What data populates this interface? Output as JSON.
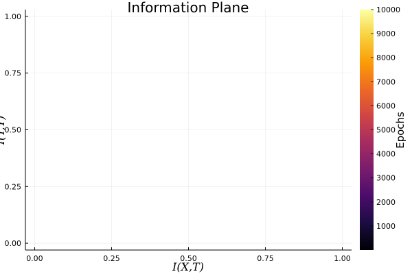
{
  "chart_data": {
    "type": "scatter",
    "title": "Information Plane",
    "xlabel": "I(X,T)",
    "ylabel": "I(T,Y)",
    "xlim": [
      -0.03,
      1.03
    ],
    "ylim": [
      -0.03,
      1.03
    ],
    "x_ticks": [
      0,
      0.25,
      0.5,
      0.75,
      1
    ],
    "x_tick_labels": [
      "0.00",
      "0.25",
      "0.50",
      "0.75",
      "1.00"
    ],
    "y_ticks": [
      0,
      0.25,
      0.5,
      0.75,
      1
    ],
    "y_tick_labels": [
      "0.00",
      "0.25",
      "0.50",
      "0.75",
      "1.00"
    ],
    "grid": true,
    "series": [],
    "colorbar": {
      "label": "Epochs",
      "range": [
        0,
        10000
      ],
      "ticks": [
        1000,
        2000,
        3000,
        4000,
        5000,
        6000,
        7000,
        8000,
        9000,
        10000
      ],
      "tick_labels": [
        "1000",
        "2000",
        "3000",
        "4000",
        "5000",
        "6000",
        "7000",
        "8000",
        "9000",
        "10000"
      ],
      "colormap": [
        "#000004",
        "#1b0c41",
        "#4a0c6b",
        "#781c6d",
        "#a52c60",
        "#cf4446",
        "#ed6925",
        "#fb9b06",
        "#f7d13d",
        "#fcffa4"
      ]
    }
  }
}
